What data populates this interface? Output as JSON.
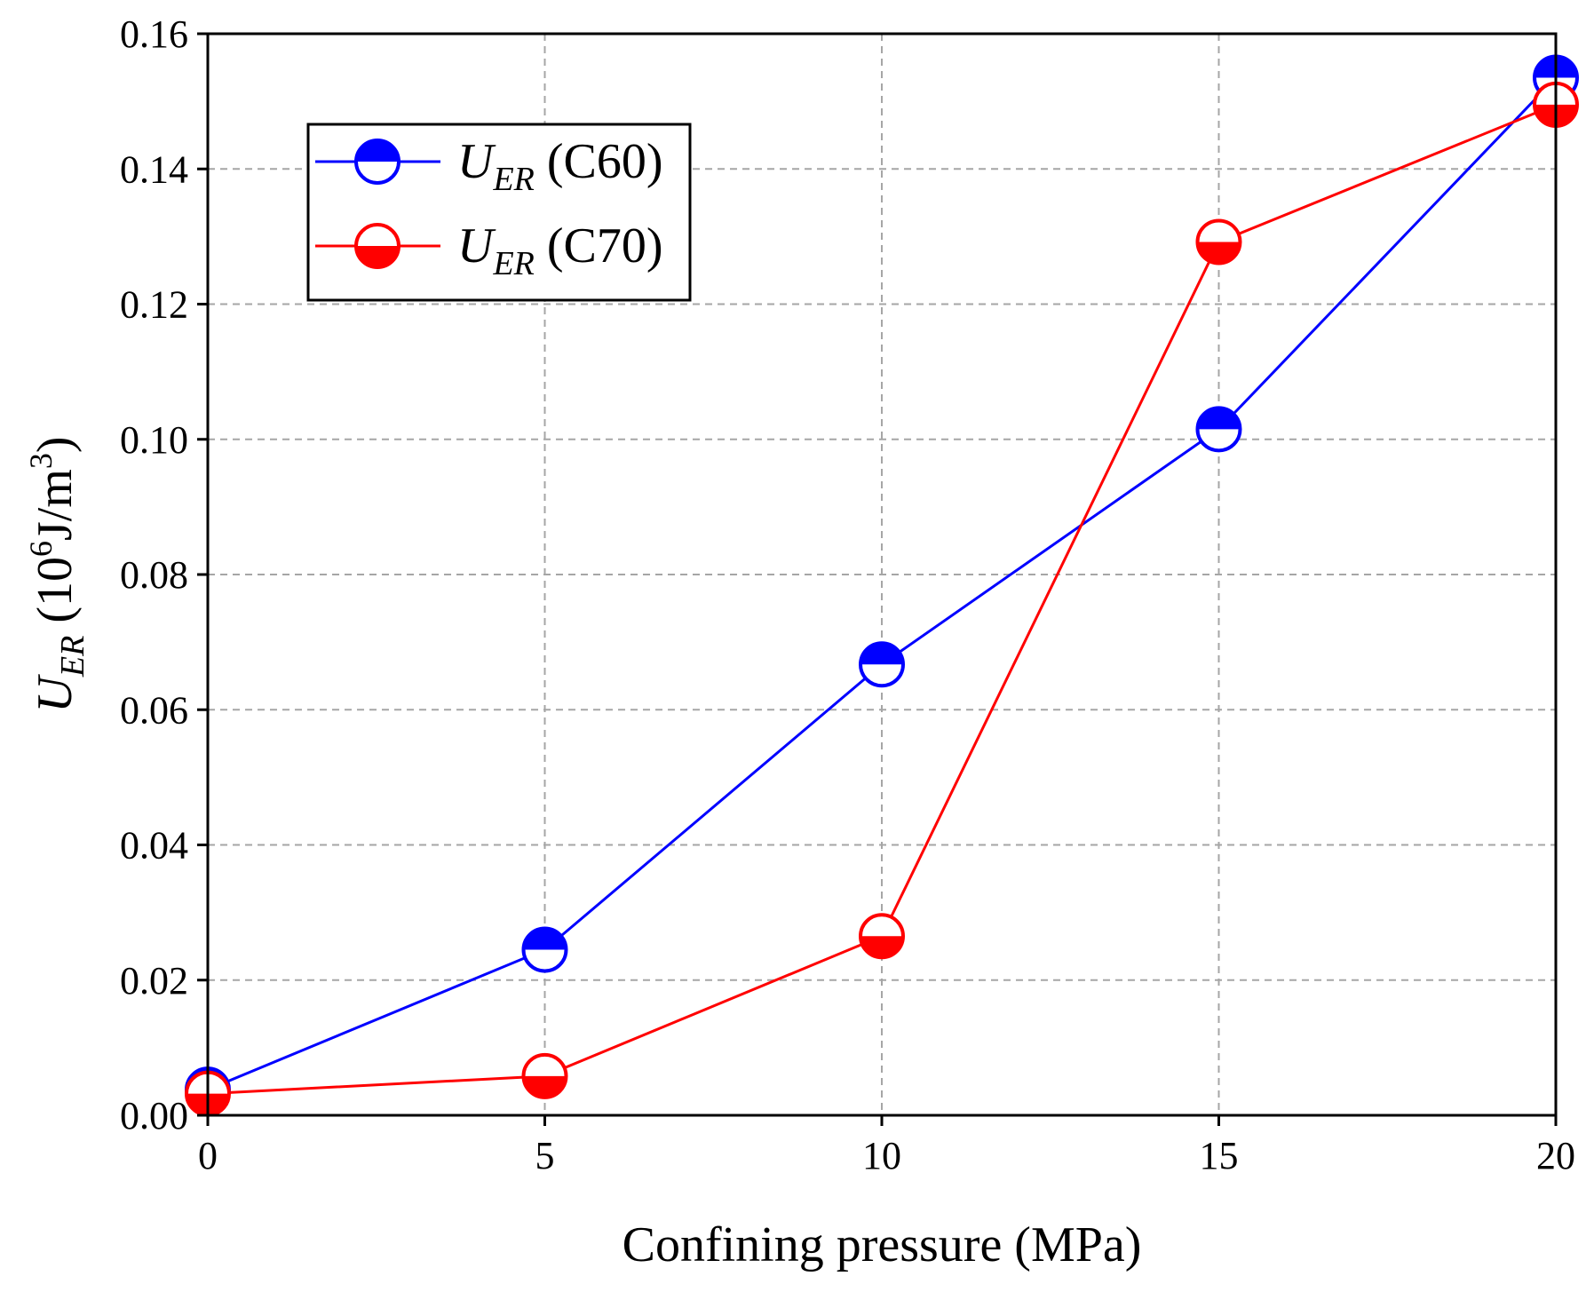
{
  "chart_data": {
    "type": "line",
    "title": "",
    "xlabel": "Confining pressure (MPa)",
    "ylabel": {
      "symbol": "U",
      "subscript": "ER",
      "unit_open": " (10",
      "unit_exp": "6",
      "unit_mid": "J/m",
      "unit_exp2": "3",
      "unit_close": ")"
    },
    "xlim": [
      0,
      20
    ],
    "ylim": [
      0,
      0.16
    ],
    "xticks": [
      0,
      5,
      10,
      15,
      20
    ],
    "xtick_labels": [
      "0",
      "5",
      "10",
      "15",
      "20"
    ],
    "yticks": [
      0,
      0.02,
      0.04,
      0.06,
      0.08,
      0.1,
      0.12,
      0.14,
      0.16
    ],
    "ytick_labels": [
      "0.00",
      "0.02",
      "0.04",
      "0.06",
      "0.08",
      "0.10",
      "0.12",
      "0.14",
      "0.16"
    ],
    "grid": true,
    "legend_position": "top-left",
    "x": [
      0,
      5,
      10,
      15,
      20
    ],
    "series": [
      {
        "name": "C60",
        "legend_symbol": "U",
        "legend_subscript": "ER",
        "legend_suffix": " (C60)",
        "color": "#0000ff",
        "marker": "half-filled-top",
        "values": [
          0.0038,
          0.0245,
          0.0667,
          0.1015,
          0.1535
        ]
      },
      {
        "name": "C70",
        "legend_symbol": "U",
        "legend_subscript": "ER",
        "legend_suffix": " (C70)",
        "color": "#ff0000",
        "marker": "half-filled-bottom",
        "values": [
          0.0032,
          0.0058,
          0.0265,
          0.1292,
          0.1495
        ]
      }
    ]
  }
}
